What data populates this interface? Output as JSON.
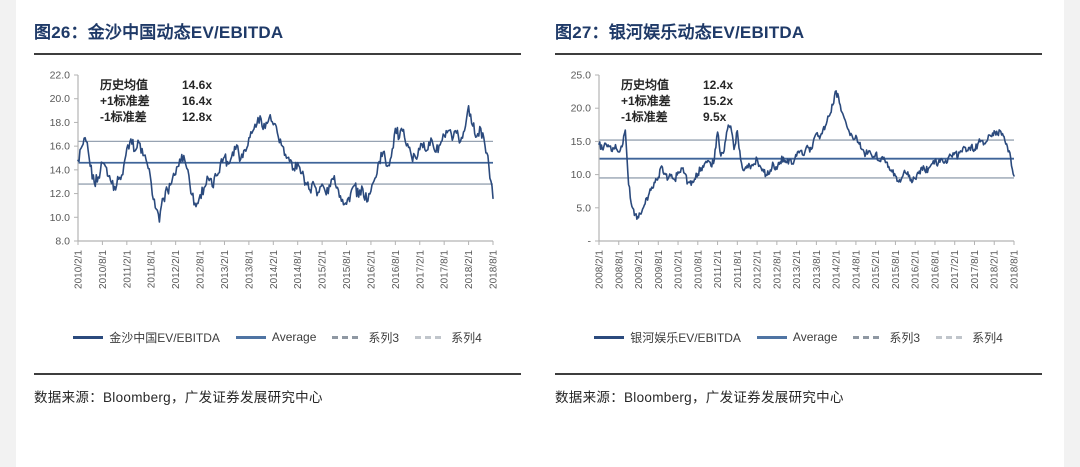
{
  "page": {
    "background": "#ffffff"
  },
  "colors": {
    "title": "#1f3a68",
    "axis": "#b3b3b3",
    "tick_text": "#595959",
    "annotation_text": "#262626",
    "rule": "#3d3d3d",
    "source_text": "#262626"
  },
  "panels": [
    {
      "title": "图26：金沙中国动态EV/EBITDA",
      "source": "数据来源：Bloomberg，广发证券发展研究中心"
    },
    {
      "title": "图27：银河娱乐动态EV/EBITDA",
      "source": "数据来源：Bloomberg，广发证券发展研究中心"
    }
  ],
  "chart_data": [
    {
      "type": "line",
      "title": "图26：金沙中国动态EV/EBITDA",
      "xlabel": "",
      "ylabel": "",
      "ylim": [
        8,
        22
      ],
      "grid": false,
      "legend_position": "bottom",
      "annotation": {
        "rows": [
          {
            "label": "历史均值",
            "value": "14.6x"
          },
          {
            "label": "+1标准差",
            "value": "16.4x"
          },
          {
            "label": "-1标准差",
            "value": "12.8x"
          }
        ]
      },
      "mean": 14.6,
      "sd_plus": 16.4,
      "sd_minus": 12.8,
      "yticks": [
        {
          "v": 22,
          "label": "22.0"
        },
        {
          "v": 20,
          "label": "20.0"
        },
        {
          "v": 18,
          "label": "18.0"
        },
        {
          "v": 16,
          "label": "16.0"
        },
        {
          "v": 14,
          "label": "14.0"
        },
        {
          "v": 12,
          "label": "12.0"
        },
        {
          "v": 10,
          "label": "10.0"
        },
        {
          "v": 8,
          "label": "8.0"
        }
      ],
      "xtick_labels": [
        "2010/2/1",
        "2010/8/1",
        "2011/2/1",
        "2011/8/1",
        "2012/2/1",
        "2012/8/1",
        "2013/2/1",
        "2013/8/1",
        "2014/2/1",
        "2014/8/1",
        "2015/2/1",
        "2015/8/1",
        "2016/2/1",
        "2016/8/1",
        "2017/2/1",
        "2017/8/1",
        "2018/2/1",
        "2018/8/1"
      ],
      "xtick_every_months": 6,
      "series": [
        {
          "name": "金沙中国EV/EBITDA",
          "start": "2010/2/1",
          "freq": "monthly",
          "values": [
            14.8,
            16.0,
            16.4,
            14.3,
            12.9,
            13.4,
            14.6,
            14.2,
            13.1,
            12.6,
            13.2,
            13.6,
            15.8,
            16.6,
            15.6,
            16.3,
            15.2,
            14.5,
            12.9,
            10.8,
            9.6,
            11.6,
            12.3,
            12.9,
            13.6,
            14.9,
            15.2,
            14.0,
            11.9,
            10.9,
            11.9,
            12.5,
            13.3,
            12.6,
            13.5,
            14.5,
            15.1,
            14.5,
            15.5,
            16.1,
            14.9,
            15.7,
            16.7,
            17.3,
            17.9,
            18.3,
            17.5,
            18.4,
            17.8,
            17.1,
            16.1,
            15.3,
            14.7,
            14.1,
            14.6,
            13.7,
            12.9,
            12.3,
            12.8,
            12.1,
            12.8,
            11.9,
            12.6,
            13.5,
            12.3,
            11.5,
            11.1,
            12.0,
            12.7,
            11.7,
            12.4,
            11.3,
            12.2,
            13.3,
            14.7,
            15.5,
            14.3,
            15.1,
            17.5,
            16.7,
            17.4,
            16.2,
            15.1,
            15.0,
            15.7,
            16.3,
            15.7,
            16.5,
            15.5,
            16.1,
            16.9,
            17.3,
            16.5,
            17.1,
            16.4,
            17.3,
            19.4,
            17.7,
            16.8,
            17.5,
            16.1,
            14.3,
            11.6
          ]
        }
      ],
      "legend": [
        {
          "label": "金沙中国EV/EBITDA",
          "style": "solid",
          "color": "#2b4a7d"
        },
        {
          "label": "Average",
          "style": "solid",
          "color": "#4f74a3"
        },
        {
          "label": "系列3",
          "style": "dashed",
          "color": "#8f98a3"
        },
        {
          "label": "系列4",
          "style": "dashed",
          "color": "#c0c5cb"
        }
      ],
      "line_colors": {
        "series": "#2b4a7d",
        "mean": "#3f6499",
        "sd": "#97a3b2"
      }
    },
    {
      "type": "line",
      "title": "图27：银河娱乐动态EV/EBITDA",
      "xlabel": "",
      "ylabel": "",
      "ylim": [
        0,
        25
      ],
      "grid": false,
      "legend_position": "bottom",
      "annotation": {
        "rows": [
          {
            "label": "历史均值",
            "value": "12.4x"
          },
          {
            "label": "+1标准差",
            "value": "15.2x"
          },
          {
            "label": "-1标准差",
            "value": "9.5x"
          }
        ]
      },
      "mean": 12.4,
      "sd_plus": 15.2,
      "sd_minus": 9.5,
      "yticks": [
        {
          "v": 25,
          "label": "25.0"
        },
        {
          "v": 20,
          "label": "20.0"
        },
        {
          "v": 15,
          "label": "15.0"
        },
        {
          "v": 10,
          "label": "10.0"
        },
        {
          "v": 5,
          "label": "5.0"
        },
        {
          "v": 0,
          "label": "-"
        }
      ],
      "xtick_labels": [
        "2008/2/1",
        "2008/8/1",
        "2009/2/1",
        "2009/8/1",
        "2010/2/1",
        "2010/8/1",
        "2011/2/1",
        "2011/8/1",
        "2012/2/1",
        "2012/8/1",
        "2013/2/1",
        "2013/8/1",
        "2014/2/1",
        "2014/8/1",
        "2015/2/1",
        "2015/8/1",
        "2016/2/1",
        "2016/8/1",
        "2017/2/1",
        "2017/8/1",
        "2018/2/1",
        "2018/8/1"
      ],
      "xtick_every_months": 6,
      "series": [
        {
          "name": "银河娱乐EV/EBITDA",
          "start": "2008/2/1",
          "freq": "monthly",
          "values": [
            14.6,
            13.8,
            14.7,
            14.2,
            13.5,
            14.5,
            13.4,
            14.2,
            16.7,
            8.5,
            5.2,
            4.0,
            3.5,
            4.4,
            5.6,
            6.8,
            8.1,
            8.8,
            9.6,
            11.3,
            10.2,
            9.4,
            10.0,
            9.2,
            10.4,
            11.0,
            10.2,
            8.8,
            8.4,
            9.3,
            10.1,
            11.0,
            11.6,
            12.1,
            11.3,
            12.2,
            16.4,
            12.8,
            13.6,
            16.8,
            17.3,
            13.8,
            16.6,
            12.3,
            10.6,
            11.4,
            10.9,
            11.6,
            12.4,
            11.2,
            10.4,
            9.9,
            10.7,
            11.5,
            10.8,
            11.9,
            12.6,
            11.8,
            12.3,
            11.6,
            12.8,
            13.5,
            12.9,
            14.2,
            13.4,
            14.8,
            16.2,
            15.4,
            16.8,
            17.6,
            18.9,
            20.5,
            22.6,
            20.8,
            19.2,
            17.8,
            16.4,
            15.6,
            15.9,
            14.6,
            13.8,
            13.1,
            13.6,
            12.6,
            13.2,
            12.1,
            12.7,
            11.8,
            11.2,
            10.4,
            9.8,
            8.9,
            9.6,
            10.3,
            9.7,
            8.8,
            9.4,
            10.2,
            11.1,
            10.5,
            10.9,
            11.6,
            12.2,
            11.7,
            12.4,
            11.9,
            12.5,
            12.8,
            13.3,
            12.7,
            13.5,
            14.1,
            13.6,
            14.3,
            13.8,
            14.6,
            15.1,
            14.7,
            15.3,
            15.8,
            16.6,
            16.1,
            16.5,
            15.7,
            14.2,
            12.5,
            9.8
          ]
        }
      ],
      "legend": [
        {
          "label": "银河娱乐EV/EBITDA",
          "style": "solid",
          "color": "#2b4a7d"
        },
        {
          "label": "Average",
          "style": "solid",
          "color": "#4f74a3"
        },
        {
          "label": "系列3",
          "style": "dashed",
          "color": "#8f98a3"
        },
        {
          "label": "系列4",
          "style": "dashed",
          "color": "#c0c5cb"
        }
      ],
      "line_colors": {
        "series": "#2b4a7d",
        "mean": "#3f6499",
        "sd": "#97a3b2"
      }
    }
  ]
}
